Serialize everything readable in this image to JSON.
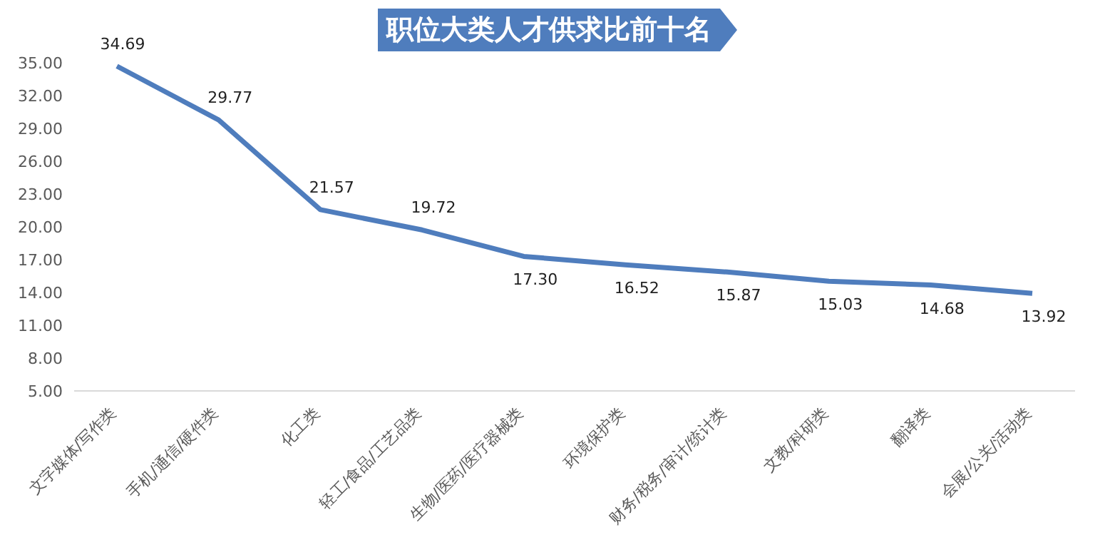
{
  "chart_data": {
    "type": "line",
    "title": "职位大类人才供求比前十名",
    "categories": [
      "文字媒体/写作类",
      "手机/通信/硬件类",
      "化工类",
      "轻工/食品/工艺品类",
      "生物/医药/医疗器械类",
      "环境保护类",
      "财务/税务/审计/统计类",
      "文教/科研类",
      "翻译类",
      "会展/公关/活动类"
    ],
    "series": [
      {
        "color": "#4f7dbd",
        "values": [
          34.69,
          29.77,
          21.57,
          19.72,
          17.3,
          16.52,
          15.87,
          15.03,
          14.68,
          13.92
        ]
      }
    ],
    "value_labels": [
      "34.69",
      "29.77",
      "21.57",
      "19.72",
      "17.30",
      "16.52",
      "15.87",
      "15.03",
      "14.68",
      "13.92"
    ],
    "ylim": [
      5,
      35
    ],
    "yticks": [
      {
        "value": 5,
        "label": "5.00"
      },
      {
        "value": 8,
        "label": "8.00"
      },
      {
        "value": 11,
        "label": "11.00"
      },
      {
        "value": 14,
        "label": "14.00"
      },
      {
        "value": 17,
        "label": "17.00"
      },
      {
        "value": 20,
        "label": "20.00"
      },
      {
        "value": 23,
        "label": "23.00"
      },
      {
        "value": 26,
        "label": "26.00"
      },
      {
        "value": 29,
        "label": "29.00"
      },
      {
        "value": 32,
        "label": "32.00"
      },
      {
        "value": 35,
        "label": "35.00"
      }
    ],
    "grid": false,
    "marker": "none",
    "line_style": "solid"
  }
}
